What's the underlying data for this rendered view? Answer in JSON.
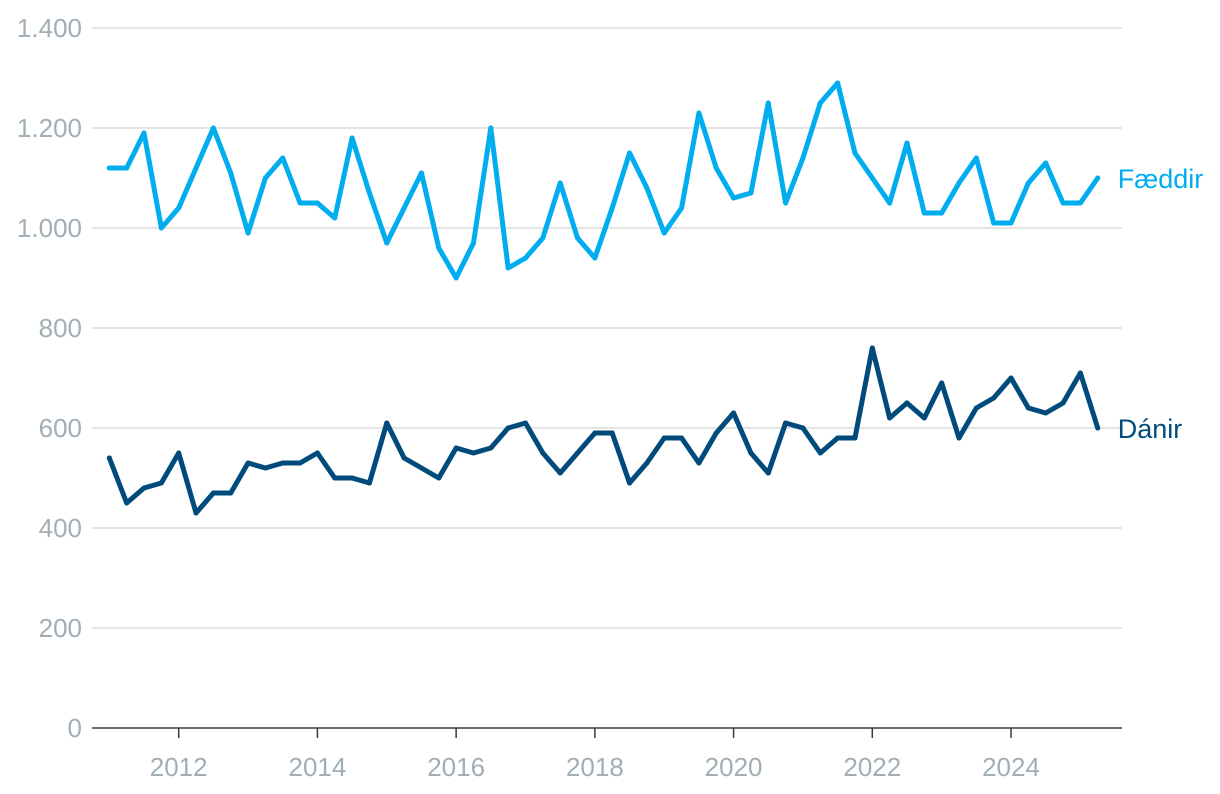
{
  "chart_data": {
    "type": "line",
    "title": "",
    "xlabel": "",
    "ylabel": "",
    "ylim": [
      0,
      1400
    ],
    "yticks": [
      0,
      200,
      400,
      600,
      800,
      1000,
      1200,
      1400
    ],
    "ytick_labels": [
      "0",
      "200",
      "400",
      "600",
      "800",
      "1.000",
      "1.200",
      "1.400"
    ],
    "xlim": [
      2010.75,
      2025.6
    ],
    "xticks": [
      2012,
      2014,
      2016,
      2018,
      2020,
      2022,
      2024
    ],
    "xtick_labels": [
      "2012",
      "2014",
      "2016",
      "2018",
      "2020",
      "2022",
      "2024"
    ],
    "grid": true,
    "legend": "direct labels at right end of lines",
    "x": [
      2011.0,
      2011.25,
      2011.5,
      2011.75,
      2012.0,
      2012.25,
      2012.5,
      2012.75,
      2013.0,
      2013.25,
      2013.5,
      2013.75,
      2014.0,
      2014.25,
      2014.5,
      2014.75,
      2015.0,
      2015.25,
      2015.5,
      2015.75,
      2016.0,
      2016.25,
      2016.5,
      2016.75,
      2017.0,
      2017.25,
      2017.5,
      2017.75,
      2018.0,
      2018.25,
      2018.5,
      2018.75,
      2019.0,
      2019.25,
      2019.5,
      2019.75,
      2020.0,
      2020.25,
      2020.5,
      2020.75,
      2021.0,
      2021.25,
      2021.5,
      2021.75,
      2022.0,
      2022.25,
      2022.5,
      2022.75,
      2023.0,
      2023.25,
      2023.5,
      2023.75,
      2024.0,
      2024.25,
      2024.5,
      2024.75,
      2025.0,
      2025.25
    ],
    "series": [
      {
        "name": "Fæddir",
        "color": "#00aeef",
        "values": [
          1120,
          1120,
          1190,
          1000,
          1040,
          1120,
          1200,
          1110,
          990,
          1100,
          1140,
          1050,
          1050,
          1020,
          1180,
          1070,
          970,
          1040,
          1110,
          960,
          900,
          970,
          1200,
          920,
          940,
          980,
          1090,
          980,
          940,
          1040,
          1150,
          1080,
          990,
          1040,
          1230,
          1120,
          1060,
          1070,
          1250,
          1050,
          1140,
          1250,
          1290,
          1150,
          1100,
          1050,
          1170,
          1030,
          1030,
          1090,
          1140,
          1010,
          1010,
          1090,
          1130,
          1050,
          1050,
          1100
        ]
      },
      {
        "name": "Dánir",
        "color": "#004b7c",
        "values": [
          540,
          450,
          480,
          490,
          550,
          430,
          470,
          470,
          530,
          520,
          530,
          530,
          550,
          500,
          500,
          490,
          610,
          540,
          520,
          500,
          560,
          550,
          560,
          600,
          610,
          550,
          510,
          550,
          590,
          590,
          490,
          530,
          580,
          580,
          530,
          590,
          630,
          550,
          510,
          610,
          600,
          550,
          580,
          580,
          760,
          620,
          650,
          620,
          690,
          580,
          640,
          660,
          700,
          640,
          630,
          650,
          710,
          600
        ]
      }
    ]
  }
}
